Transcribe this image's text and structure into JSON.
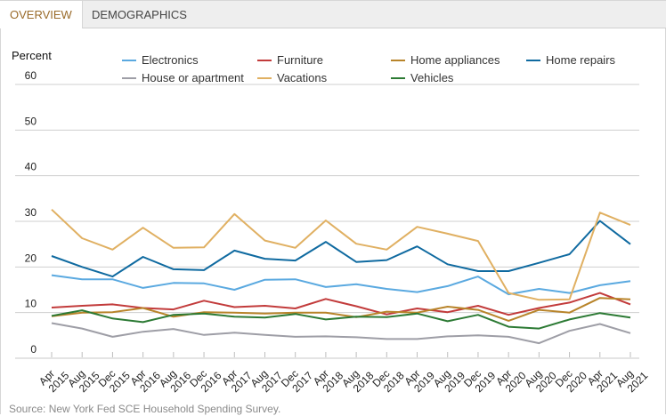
{
  "tabs": [
    {
      "label": "OVERVIEW",
      "active": true
    },
    {
      "label": "DEMOGRAPHICS",
      "active": false
    }
  ],
  "source": "Source: New York Fed SCE Household Spending Survey.",
  "chart_data": {
    "type": "line",
    "title": "",
    "ylabel": "Percent",
    "xlabel": "",
    "ylim": [
      0,
      60
    ],
    "yticks": [
      0,
      10,
      20,
      30,
      40,
      50,
      60
    ],
    "grid": true,
    "legend_position": "top",
    "x": [
      [
        "Apr",
        "2015"
      ],
      [
        "Aug",
        "2015"
      ],
      [
        "Dec",
        "2015"
      ],
      [
        "Apr",
        "2016"
      ],
      [
        "Aug",
        "2016"
      ],
      [
        "Dec",
        "2016"
      ],
      [
        "Apr",
        "2017"
      ],
      [
        "Aug",
        "2017"
      ],
      [
        "Dec",
        "2017"
      ],
      [
        "Apr",
        "2018"
      ],
      [
        "Aug",
        "2018"
      ],
      [
        "Dec",
        "2018"
      ],
      [
        "Apr",
        "2019"
      ],
      [
        "Aug",
        "2019"
      ],
      [
        "Dec",
        "2019"
      ],
      [
        "Apr",
        "2020"
      ],
      [
        "Aug",
        "2020"
      ],
      [
        "Dec",
        "2020"
      ],
      [
        "Apr",
        "2021"
      ],
      [
        "Aug",
        "2021"
      ]
    ],
    "series": [
      {
        "name": "Electronics",
        "color": "#5aa9e0",
        "values": [
          18.2,
          17.3,
          17.3,
          15.4,
          16.5,
          16.4,
          15.0,
          17.2,
          17.3,
          15.6,
          16.2,
          15.2,
          14.5,
          15.8,
          17.9,
          14.0,
          15.2,
          14.3,
          16.0,
          16.9
        ]
      },
      {
        "name": "Furniture",
        "color": "#c23b3b",
        "values": [
          11.1,
          11.5,
          11.8,
          11.0,
          10.7,
          12.6,
          11.2,
          11.5,
          10.9,
          13.0,
          11.4,
          9.6,
          10.9,
          10.1,
          11.5,
          9.5,
          11.0,
          12.2,
          14.3,
          11.8
        ]
      },
      {
        "name": "Home appliances",
        "color": "#b8842a",
        "values": [
          9.2,
          10.0,
          10.1,
          11.0,
          9.1,
          10.1,
          10.0,
          9.8,
          10.0,
          10.0,
          9.0,
          10.2,
          10.0,
          11.3,
          10.6,
          8.2,
          10.6,
          10.0,
          13.2,
          12.9
        ]
      },
      {
        "name": "Home repairs",
        "color": "#0f6aa0",
        "values": [
          22.4,
          20.0,
          17.9,
          22.2,
          19.5,
          19.3,
          23.6,
          21.8,
          21.4,
          25.5,
          21.1,
          21.5,
          24.5,
          20.6,
          19.1,
          19.1,
          20.9,
          22.8,
          30.1,
          25.0
        ]
      },
      {
        "name": "House or apartment",
        "color": "#9e9ea6",
        "values": [
          7.7,
          6.5,
          4.7,
          5.8,
          6.4,
          5.1,
          5.6,
          5.1,
          4.7,
          4.8,
          4.6,
          4.2,
          4.2,
          4.8,
          5.0,
          4.7,
          3.3,
          6.0,
          7.5,
          5.5
        ]
      },
      {
        "name": "Vacations",
        "color": "#e0b062",
        "values": [
          32.6,
          26.3,
          23.8,
          28.6,
          24.2,
          24.3,
          31.6,
          25.8,
          24.2,
          30.2,
          25.1,
          23.8,
          28.8,
          27.3,
          25.7,
          14.3,
          12.8,
          12.9,
          31.9,
          29.2
        ]
      },
      {
        "name": "Vehicles",
        "color": "#2c7a34",
        "values": [
          9.3,
          10.5,
          8.7,
          7.9,
          9.5,
          9.8,
          9.1,
          8.9,
          9.7,
          8.5,
          9.1,
          9.0,
          9.8,
          8.1,
          9.5,
          6.9,
          6.5,
          8.5,
          9.9,
          8.9
        ]
      }
    ]
  }
}
